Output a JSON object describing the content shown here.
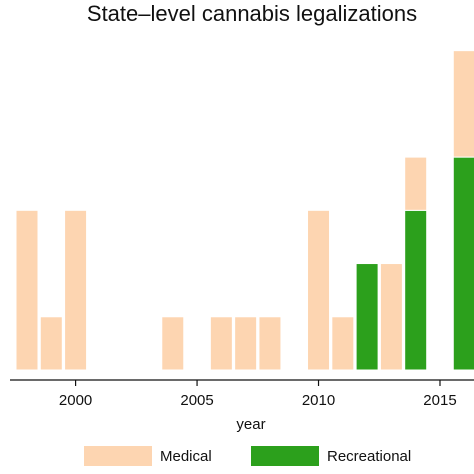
{
  "chart_data": {
    "type": "bar",
    "stacked": true,
    "title": "State–level cannabis legalizations",
    "xlabel": "year",
    "ylabel": "",
    "x": [
      1998,
      1999,
      2000,
      2004,
      2006,
      2007,
      2008,
      2010,
      2011,
      2012,
      2013,
      2014,
      2016
    ],
    "series": [
      {
        "name": "Recreational",
        "color": "#2ca01c",
        "values": [
          0,
          0,
          0,
          0,
          0,
          0,
          0,
          0,
          0,
          2,
          0,
          3,
          4
        ]
      },
      {
        "name": "Medical",
        "color": "#fdd5b1",
        "values": [
          3,
          1,
          3,
          1,
          1,
          1,
          1,
          3,
          1,
          0,
          2,
          1,
          2
        ]
      }
    ],
    "xticks": [
      "2000",
      "2005",
      "2010",
      "2015"
    ],
    "xlim": [
      1997.3,
      2016.4
    ],
    "ylim": [
      0,
      6.2
    ],
    "grid": false,
    "legend_position": "bottom"
  }
}
